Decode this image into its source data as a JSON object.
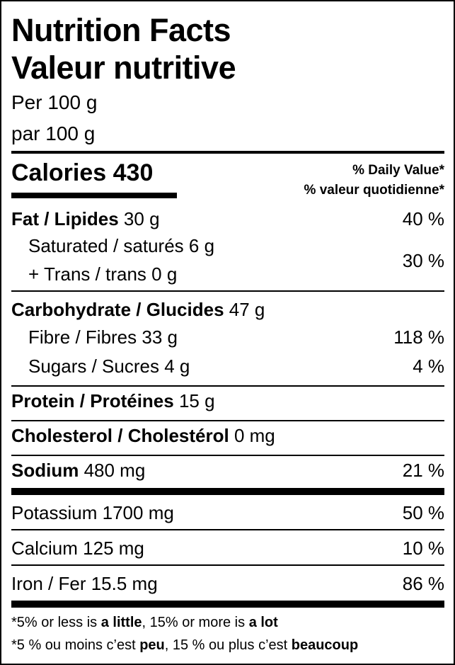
{
  "title_en": "Nutrition Facts",
  "title_fr": "Valeur nutritive",
  "serving_en": "Per 100 g",
  "serving_fr": "par 100 g",
  "calories": {
    "label": "Calories",
    "value": "430"
  },
  "dv_header_en": "% Daily Value*",
  "dv_header_fr": "% valeur quotidienne*",
  "fat": {
    "label": "Fat / Lipides",
    "amount": "30 g",
    "dv": "40 %"
  },
  "saturated": {
    "label": "Saturated / saturés",
    "amount": "6 g"
  },
  "trans": {
    "label": "+ Trans / trans",
    "amount": "0 g"
  },
  "sat_trans_dv": "30 %",
  "carbohydrate": {
    "label": "Carbohydrate / Glucides",
    "amount": "47 g"
  },
  "fibre": {
    "label": "Fibre / Fibres",
    "amount": "33 g",
    "dv": "118 %"
  },
  "sugars": {
    "label": "Sugars / Sucres",
    "amount": "4 g",
    "dv": "4 %"
  },
  "protein": {
    "label": "Protein / Protéines",
    "amount": "15 g"
  },
  "cholesterol": {
    "label": "Cholesterol / Cholestérol",
    "amount": "0 mg"
  },
  "sodium": {
    "label": "Sodium",
    "amount": "480 mg",
    "dv": "21 %"
  },
  "potassium": {
    "label": "Potassium",
    "amount": "1700 mg",
    "dv": "50 %"
  },
  "calcium": {
    "label": "Calcium",
    "amount": "125 mg",
    "dv": "10 %"
  },
  "iron": {
    "label": "Iron / Fer",
    "amount": "15.5 mg",
    "dv": "86 %"
  },
  "footnote_en": {
    "a": "*5% or less is ",
    "b": "a little",
    "c": ", 15% or more is ",
    "d": "a lot"
  },
  "footnote_fr": {
    "a": "*5 % ou moins c’est ",
    "b": "peu",
    "c": ", 15 % ou plus c’est ",
    "d": "beaucoup"
  }
}
